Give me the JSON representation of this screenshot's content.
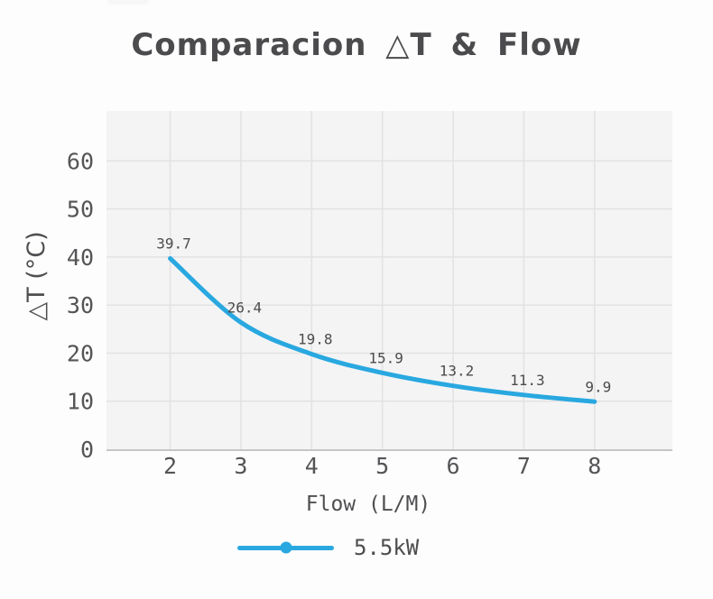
{
  "title": "Comparacion △T & Flow",
  "legend": {
    "label": "5.5kW"
  },
  "colors": {
    "series_blue": "#29a8e0",
    "plot_background": "#f4f4f5",
    "gridline": "#e2e2e3",
    "axis_line": "#c6c6c8",
    "tick_text": "#555558",
    "label_text": "#4c4c4c",
    "title_text": "#4b4b4e",
    "page_background": "#fdfdfd"
  },
  "chart_data": {
    "type": "line",
    "title": "Comparacion △T & Flow",
    "xlabel": "Flow (L/M)",
    "ylabel": "△T (°C)",
    "x": [
      2,
      3,
      4,
      5,
      6,
      7,
      8
    ],
    "series": [
      {
        "name": "5.5kW",
        "values": [
          39.7,
          26.4,
          19.8,
          15.9,
          13.2,
          11.3,
          9.9
        ],
        "color": "#29a8e0"
      }
    ],
    "point_labels": [
      "39.7",
      "26.4",
      "19.8",
      "15.9",
      "13.2",
      "11.3",
      "9.9"
    ],
    "x_ticks": [
      2,
      3,
      4,
      5,
      6,
      7,
      8
    ],
    "y_ticks": [
      0,
      10,
      20,
      30,
      40,
      50,
      60
    ],
    "xlim": [
      1.1,
      9.1
    ],
    "ylim": [
      0,
      70.4
    ],
    "grid": true,
    "smooth": true,
    "legend_position": "bottom"
  }
}
